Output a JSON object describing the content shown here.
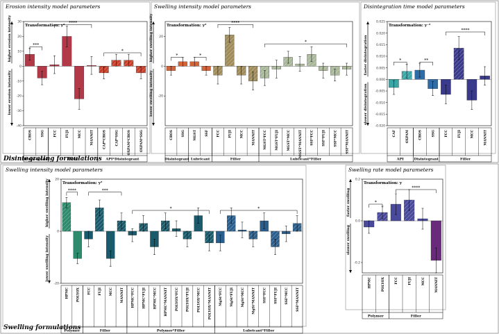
{
  "sections": [
    {
      "id": "top",
      "title": "Disintegrating formulations"
    },
    {
      "id": "bottom",
      "title": "Swelling formulations"
    }
  ],
  "chart_data": [
    {
      "id": "erosion",
      "type": "bar",
      "title": "Erosion intensity model parameters",
      "transformation": "Transformation: y²",
      "ylabel_up": "higher erosion intensity",
      "ylabel_down": "lower erosion intensity",
      "ylim": [
        -40,
        30
      ],
      "yticks": [
        -40,
        -30,
        -20,
        -10,
        0,
        10,
        20,
        30
      ],
      "categories": [
        "CROS",
        "SSG",
        "FCC",
        "FUJI",
        "MCC",
        "MANNIT",
        "CAP*CROS",
        "CAP*SSG",
        "OXPAM*CROS",
        "OXPAM*SSG"
      ],
      "values": [
        8,
        -8,
        1,
        20,
        -22,
        0.5,
        -4.5,
        4,
        4,
        -4.5
      ],
      "errors": [
        4,
        4.5,
        6,
        7,
        7,
        6,
        4,
        4,
        4,
        4
      ],
      "colors": [
        "#b23a48",
        "#b23a48",
        "#b23a48",
        "#b23a48",
        "#b23a48",
        "#b23a48",
        "#c8402a",
        "#c8402a",
        "#c8402a",
        "#c8402a"
      ],
      "hatched": [
        false,
        false,
        false,
        false,
        false,
        false,
        true,
        true,
        true,
        true
      ],
      "groups": [
        {
          "label": "Disintegrant",
          "from": 0,
          "to": 1
        },
        {
          "label": "Filler",
          "from": 2,
          "to": 5
        },
        {
          "label": "API*Disintegrant",
          "from": 6,
          "to": 9
        }
      ],
      "significance": [
        {
          "from": 0,
          "to": 1,
          "label": "***",
          "y": 13
        },
        {
          "from": 2,
          "to": 5,
          "label": "****",
          "y": 28
        },
        {
          "from": 6,
          "to": 9,
          "label": "*",
          "y": 9
        }
      ]
    },
    {
      "id": "swelling-int-top",
      "type": "bar",
      "title": "Swelling intensity model parameters",
      "transformation": "Transformation: y²",
      "ylabel_up": "higher swelling intensity",
      "ylabel_down": "lower swelling intensity",
      "ylim": [
        -40,
        30
      ],
      "yticks": [
        -20,
        0,
        20
      ],
      "categories": [
        "CROS",
        "SSG",
        "MGST",
        "SSF",
        "FCC",
        "FUJI",
        "MCC",
        "MANNIT",
        "MGST*FCC",
        "MGST*FUJI",
        "MGST*MCC",
        "MGST*MANNIT",
        "SSF*FCC",
        "SSF*FUJI",
        "SSF*MCC",
        "SSF*MANNIT"
      ],
      "values": [
        -3,
        3,
        3,
        -3,
        -6,
        21,
        -6,
        -10,
        -8,
        -2,
        6,
        1.5,
        8,
        -3,
        -6,
        -2
      ],
      "errors": [
        3,
        3,
        3,
        3,
        6,
        5,
        6,
        6,
        5,
        6,
        4,
        5,
        5,
        5,
        4,
        4
      ],
      "colors": [
        "#d4643a",
        "#d4643a",
        "#d4643a",
        "#d4643a",
        "#a08c5a",
        "#a08c5a",
        "#a08c5a",
        "#a08c5a",
        "#aab89a",
        "#aab89a",
        "#aab89a",
        "#aab89a",
        "#aab89a",
        "#aab89a",
        "#aab89a",
        "#aab89a"
      ],
      "hatched": [
        false,
        false,
        false,
        false,
        true,
        true,
        true,
        true,
        true,
        true,
        true,
        true,
        true,
        true,
        true,
        true
      ],
      "groups": [
        {
          "label": "Disintegrant",
          "from": 0,
          "to": 1
        },
        {
          "label": "Lubricant",
          "from": 2,
          "to": 3
        },
        {
          "label": "Filler",
          "from": 4,
          "to": 7
        },
        {
          "label": "Lubricant*Filler",
          "from": 8,
          "to": 15
        }
      ],
      "significance": [
        {
          "from": 0,
          "to": 1,
          "label": "*",
          "y": 6
        },
        {
          "from": 2,
          "to": 3,
          "label": "*",
          "y": 6
        },
        {
          "from": 4,
          "to": 7,
          "label": "****",
          "y": 28
        },
        {
          "from": 8,
          "to": 15,
          "label": "*",
          "y": 15
        }
      ]
    },
    {
      "id": "disintegration-time",
      "type": "bar",
      "title": "Disintegration time model parameters",
      "transformation": "Transformation: y⁻²",
      "ylabel_up": "faster disintegration",
      "ylabel_down": "slower disintegration",
      "ylim": [
        -0.02,
        0.025
      ],
      "yticks": [
        -0.02,
        -0.015,
        -0.01,
        -0.005,
        0,
        0.005,
        0.01,
        0.015,
        0.02,
        0.025
      ],
      "ytick_labels": [
        "-0.020",
        "-0.015",
        "-0.010",
        "-0.005",
        "0.000",
        "0.005",
        "0.010",
        "0.015",
        "0.020",
        "0.025"
      ],
      "categories": [
        "CAF",
        "OXPAM",
        "CROS",
        "SSG",
        "FCC",
        "FUJI",
        "MCC",
        "MANNIT"
      ],
      "values": [
        -0.0035,
        0.0035,
        0.004,
        -0.004,
        -0.0065,
        0.0135,
        -0.009,
        0.0015
      ],
      "errors": [
        0.003,
        0.003,
        0.003,
        0.003,
        0.004,
        0.005,
        0.004,
        0.004
      ],
      "colors": [
        "#3aa6a6",
        "#3aa6a6",
        "#2f6da8",
        "#2f6da8",
        "#3a3a8c",
        "#3a3a8c",
        "#3a3a8c",
        "#3a3a8c"
      ],
      "hatched": [
        false,
        true,
        false,
        false,
        false,
        true,
        false,
        false
      ],
      "groups": [
        {
          "label": "API",
          "from": 0,
          "to": 1
        },
        {
          "label": "Disintegrant",
          "from": 2,
          "to": 3
        },
        {
          "label": "Filler",
          "from": 4,
          "to": 7
        }
      ],
      "significance": [
        {
          "from": 0,
          "to": 1,
          "label": "*",
          "y": 0.0075
        },
        {
          "from": 2,
          "to": 3,
          "label": "**",
          "y": 0.0075
        },
        {
          "from": 4,
          "to": 7,
          "label": "****",
          "y": 0.0205
        }
      ]
    },
    {
      "id": "swelling-int-bottom",
      "type": "bar",
      "title": "Swelling intensity model parameters",
      "transformation": "Transformation: y²",
      "ylabel_up": "higher swelling intensity",
      "ylabel_down": "lower swelling intensity",
      "ylim": [
        -20,
        20
      ],
      "yticks": [
        -20,
        0,
        20
      ],
      "categories": [
        "HPMC",
        "POLYOX",
        "FCC",
        "FUJI",
        "MCC",
        "MANNIT",
        "HPMC*FCC",
        "HPMC*FUJI",
        "HPMC*MCC",
        "HPMC*MANNIT",
        "POLYOX*FCC",
        "POLYOX*FUJI",
        "POLYOX*MCC",
        "POLYOX*MANNIT",
        "MgSt*FCC",
        "MgSt*FUJI",
        "MgSt*MCC",
        "MgSt*MANNIT",
        "SSF*FCC",
        "SSF*FUJI",
        "SSF*MCC",
        "SSF*MANNIT"
      ],
      "values": [
        11,
        -10.5,
        -3,
        9,
        -10.5,
        4,
        -1.5,
        3,
        -6,
        4,
        1,
        -3,
        6,
        -4.5,
        -4.5,
        6,
        0.5,
        -3,
        4,
        -6,
        -1,
        3
      ],
      "errors": [
        2,
        2,
        3,
        3,
        3,
        3,
        2.5,
        3,
        3,
        3,
        3,
        3,
        3,
        3,
        3,
        3,
        3,
        3,
        3,
        3,
        3,
        3
      ],
      "colors": [
        "#2e8b6e",
        "#2e8b6e",
        "#1a5a6a",
        "#1a5a6a",
        "#1a5a6a",
        "#1a5a6a",
        "#1a5a6a",
        "#1a5a6a",
        "#1a5a6a",
        "#1a5a6a",
        "#1a5a6a",
        "#1a5a6a",
        "#1a5a6a",
        "#1a5a6a",
        "#2a5e8c",
        "#2a5e8c",
        "#2a5e8c",
        "#2a5e8c",
        "#2a5e8c",
        "#2a5e8c",
        "#2a5e8c",
        "#2a5e8c"
      ],
      "hatched": [
        true,
        false,
        false,
        true,
        false,
        true,
        false,
        true,
        false,
        true,
        false,
        true,
        false,
        true,
        false,
        true,
        false,
        true,
        false,
        true,
        false,
        true
      ],
      "groups": [
        {
          "label": "Polymer",
          "from": 0,
          "to": 1
        },
        {
          "label": "Filler",
          "from": 2,
          "to": 5
        },
        {
          "label": "Polymer*Filler",
          "from": 6,
          "to": 13
        },
        {
          "label": "Lubricant*Filler",
          "from": 14,
          "to": 21
        }
      ],
      "significance": [
        {
          "from": 0,
          "to": 1,
          "label": "****",
          "y": 15
        },
        {
          "from": 2,
          "to": 5,
          "label": "***",
          "y": 15
        },
        {
          "from": 6,
          "to": 13,
          "label": "*",
          "y": 8
        },
        {
          "from": 14,
          "to": 21,
          "label": "*",
          "y": 8
        }
      ]
    },
    {
      "id": "swelling-rate",
      "type": "bar",
      "title": "Swelling rate model parameters",
      "transformation": "Transformation: y",
      "ylabel_up": "faster swelling",
      "ylabel_down": "slower swelling",
      "ylim": [
        -0.25,
        0.2
      ],
      "yticks": [
        -0.2,
        0,
        0.2
      ],
      "ytick_labels": [
        "-0.2",
        "0.0",
        "0.2"
      ],
      "categories": [
        "HPMC",
        "POLYOX",
        "FCC",
        "FUJI",
        "MCC",
        "MANNIT"
      ],
      "values": [
        -0.03,
        0.04,
        0.08,
        0.1,
        0.01,
        -0.19
      ],
      "errors": [
        0.03,
        0.03,
        0.05,
        0.05,
        0.05,
        0.06
      ],
      "colors": [
        "#4a4a9c",
        "#4a4a9c",
        "#4a4a9c",
        "#4a4a9c",
        "#4a4a9c",
        "#6a2a7c"
      ],
      "hatched": [
        false,
        true,
        false,
        true,
        false,
        false
      ],
      "groups": [
        {
          "label": "Polymer",
          "from": 0,
          "to": 1
        },
        {
          "label": "Filler",
          "from": 2,
          "to": 5
        }
      ],
      "significance": [
        {
          "from": 0,
          "to": 1,
          "label": "*",
          "y": 0.08
        },
        {
          "from": 2,
          "to": 5,
          "label": "****",
          "y": 0.15
        }
      ]
    }
  ]
}
